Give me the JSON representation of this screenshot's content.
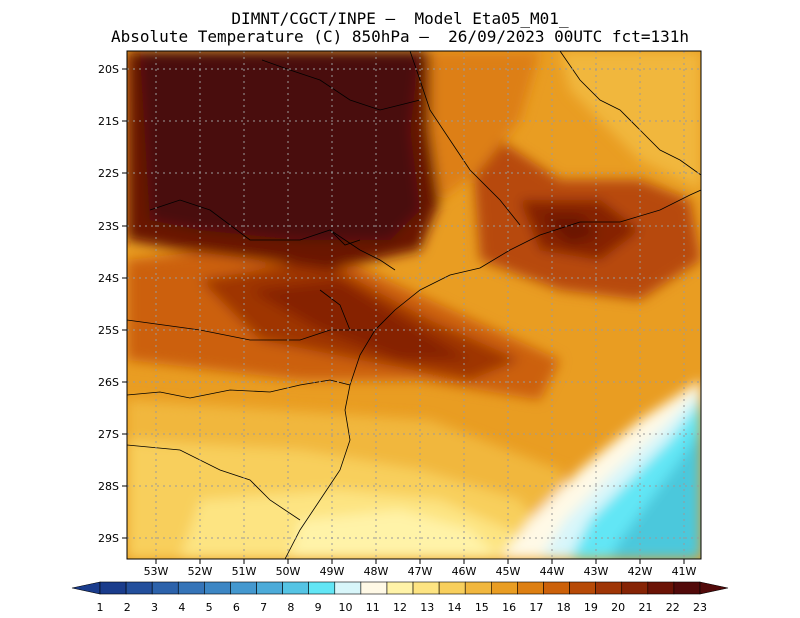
{
  "title_line1": "DIMNT/CGCT/INPE –  Model Eta05_M01_",
  "title_line2": "Absolute Temperature (C) 850hPa –  26/09/2023 00UTC fct=131h",
  "lat_labels": [
    "20S",
    "21S",
    "22S",
    "23S",
    "24S",
    "25S",
    "26S",
    "27S",
    "28S",
    "29S"
  ],
  "lon_labels": [
    "53W",
    "52W",
    "51W",
    "50W",
    "49W",
    "48W",
    "47W",
    "46W",
    "45W",
    "44W",
    "43W",
    "42W",
    "41W"
  ],
  "colorbar": {
    "labels": [
      "1",
      "2",
      "3",
      "4",
      "5",
      "6",
      "7",
      "8",
      "9",
      "10",
      "11",
      "12",
      "13",
      "14",
      "15",
      "16",
      "17",
      "18",
      "19",
      "20",
      "21",
      "22",
      "23"
    ],
    "colors": [
      "#1a3c8c",
      "#234f9c",
      "#2c62ab",
      "#3574b8",
      "#3c86c4",
      "#4498cf",
      "#4cabd9",
      "#55c4e4",
      "#62e6f5",
      "#d8f6fa",
      "#fff9e6",
      "#fff3a8",
      "#fde482",
      "#f8cf5c",
      "#f1b73e",
      "#e99d22",
      "#dd7f12",
      "#cc610a",
      "#b74a07",
      "#9f3506",
      "#862405",
      "#6b1306",
      "#520a0a"
    ]
  },
  "fields": {
    "base_color": "#e99d22",
    "cold_sea": "#4cc8dc",
    "inland_max": "#4a0c10"
  }
}
